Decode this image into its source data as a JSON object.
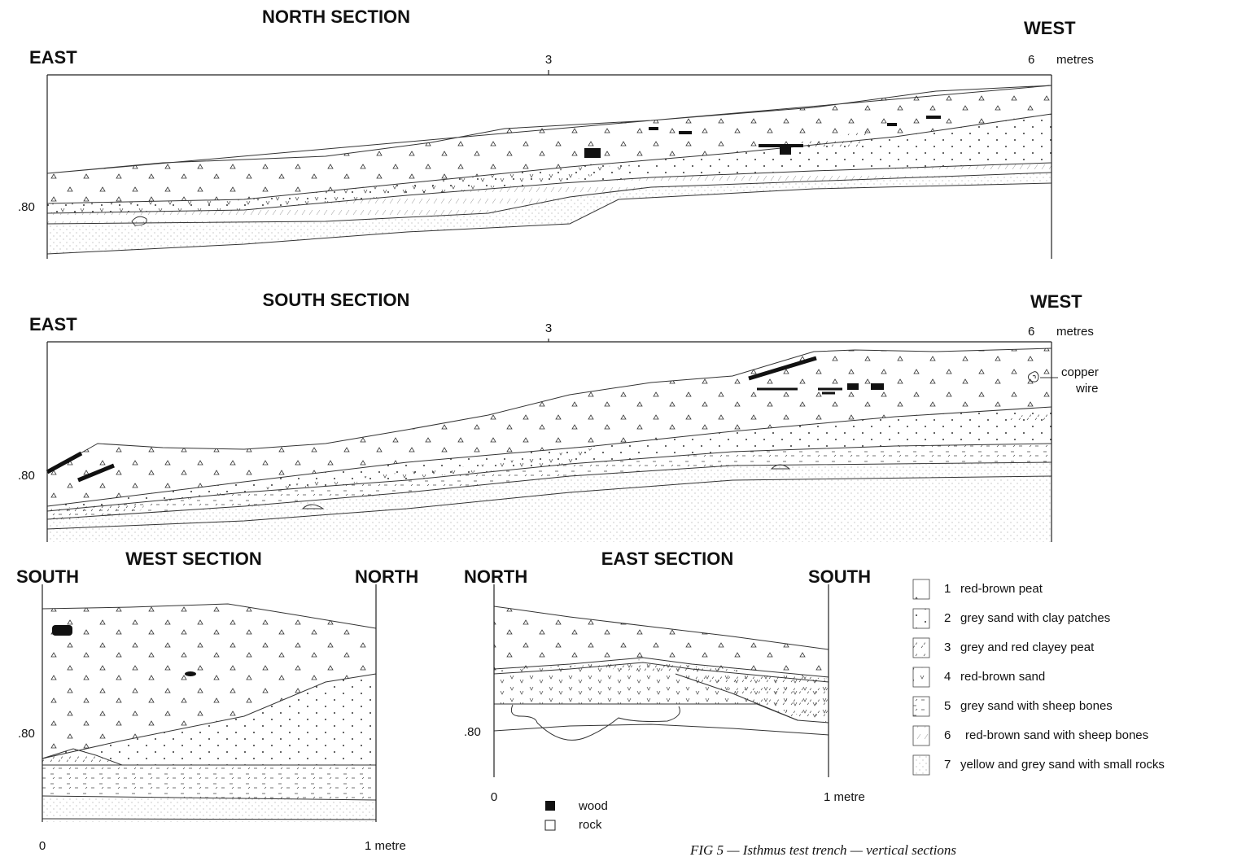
{
  "north_section": {
    "title": "NORTH SECTION",
    "left": "EAST",
    "right": "WEST",
    "mid_tick": "3",
    "end_tick": "6",
    "unit": "metres",
    "depth": ".80"
  },
  "south_section": {
    "title": "SOUTH SECTION",
    "left": "EAST",
    "right": "WEST",
    "mid_tick": "3",
    "end_tick": "6",
    "unit": "metres",
    "depth": ".80",
    "annotation": [
      "copper",
      "wire"
    ]
  },
  "west_section": {
    "title": "WEST SECTION",
    "left": "SOUTH",
    "right": "NORTH",
    "depth": ".80",
    "start_tick": "0",
    "end_tick": "1 metre"
  },
  "east_section": {
    "title": "EAST SECTION",
    "left": "NORTH",
    "right": "SOUTH",
    "depth": ".80",
    "start_tick": "0",
    "end_tick": "1 metre"
  },
  "legend": {
    "layers": [
      {
        "number": "1",
        "label": "red-brown peat"
      },
      {
        "number": "2",
        "label": "grey sand with clay patches"
      },
      {
        "number": "3",
        "label": "grey and red clayey peat"
      },
      {
        "number": "4",
        "label": "red-brown sand"
      },
      {
        "number": "5",
        "label": "grey sand with sheep bones"
      },
      {
        "number": "6",
        "label": "red-brown sand with sheep bones"
      },
      {
        "number": "7",
        "label": "yellow and grey sand with small rocks"
      }
    ],
    "symbols": [
      "wood",
      "rock"
    ]
  },
  "caption": "FIG 5 — Isthmus test trench — vertical sections"
}
